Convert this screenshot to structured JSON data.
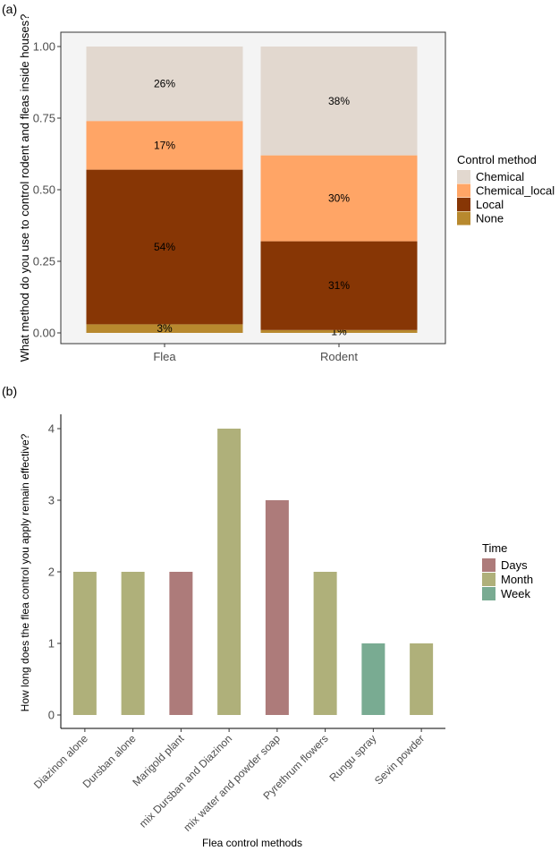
{
  "chart_data": [
    {
      "panel_label": "(a)",
      "type": "bar",
      "stacked": true,
      "categories": [
        "Flea",
        "Rodent"
      ],
      "ylabel": "What method do you use to control rodent and fleas inside houses?",
      "xlabel": "",
      "ylim": [
        0,
        1
      ],
      "yticks": [
        0,
        0.25,
        0.5,
        0.75,
        1
      ],
      "ytick_labels": [
        "0.00",
        "0.25",
        "0.50",
        "0.75",
        "1.00"
      ],
      "legend_title": "Control method",
      "legend_position": "right",
      "series": [
        {
          "name": "None",
          "color": "#b8892e",
          "values": [
            0.03,
            0.01
          ],
          "labels": [
            "3%",
            "1%"
          ]
        },
        {
          "name": "Local",
          "color": "#873605",
          "values": [
            0.54,
            0.31
          ],
          "labels": [
            "54%",
            "31%"
          ]
        },
        {
          "name": "Chemical_local",
          "color": "#ffa566",
          "values": [
            0.17,
            0.3
          ],
          "labels": [
            "17%",
            "30%"
          ]
        },
        {
          "name": "Chemical",
          "color": "#e2d8cf",
          "values": [
            0.26,
            0.38
          ],
          "labels": [
            "26%",
            "38%"
          ]
        }
      ],
      "legend_order": [
        "Chemical",
        "Chemical_local",
        "Local",
        "None"
      ]
    },
    {
      "panel_label": "(b)",
      "type": "bar",
      "categories": [
        "Diazinon alone",
        "Dursban alone",
        "Marigold plant",
        "mix Dursban and Diazinon",
        "mix water and powder soap",
        "Pyrethrum flowers",
        "Rungu spray",
        "Sevin powder"
      ],
      "values": [
        2,
        2,
        2,
        4,
        3,
        2,
        1,
        1
      ],
      "groups": [
        "Month",
        "Month",
        "Days",
        "Month",
        "Days",
        "Month",
        "Week",
        "Month"
      ],
      "xlabel": "Flea control methods",
      "ylabel": "How long does the flea control you apply remain effective?",
      "ylim": [
        0,
        4.2
      ],
      "yticks": [
        0,
        1,
        2,
        3,
        4
      ],
      "ytick_labels": [
        "0",
        "1",
        "2",
        "3",
        "4"
      ],
      "legend_title": "Time",
      "legend_position": "right",
      "legend": [
        {
          "name": "Days",
          "color": "#ad7b7a"
        },
        {
          "name": "Month",
          "color": "#afb07a"
        },
        {
          "name": "Week",
          "color": "#79ab92"
        }
      ]
    }
  ]
}
